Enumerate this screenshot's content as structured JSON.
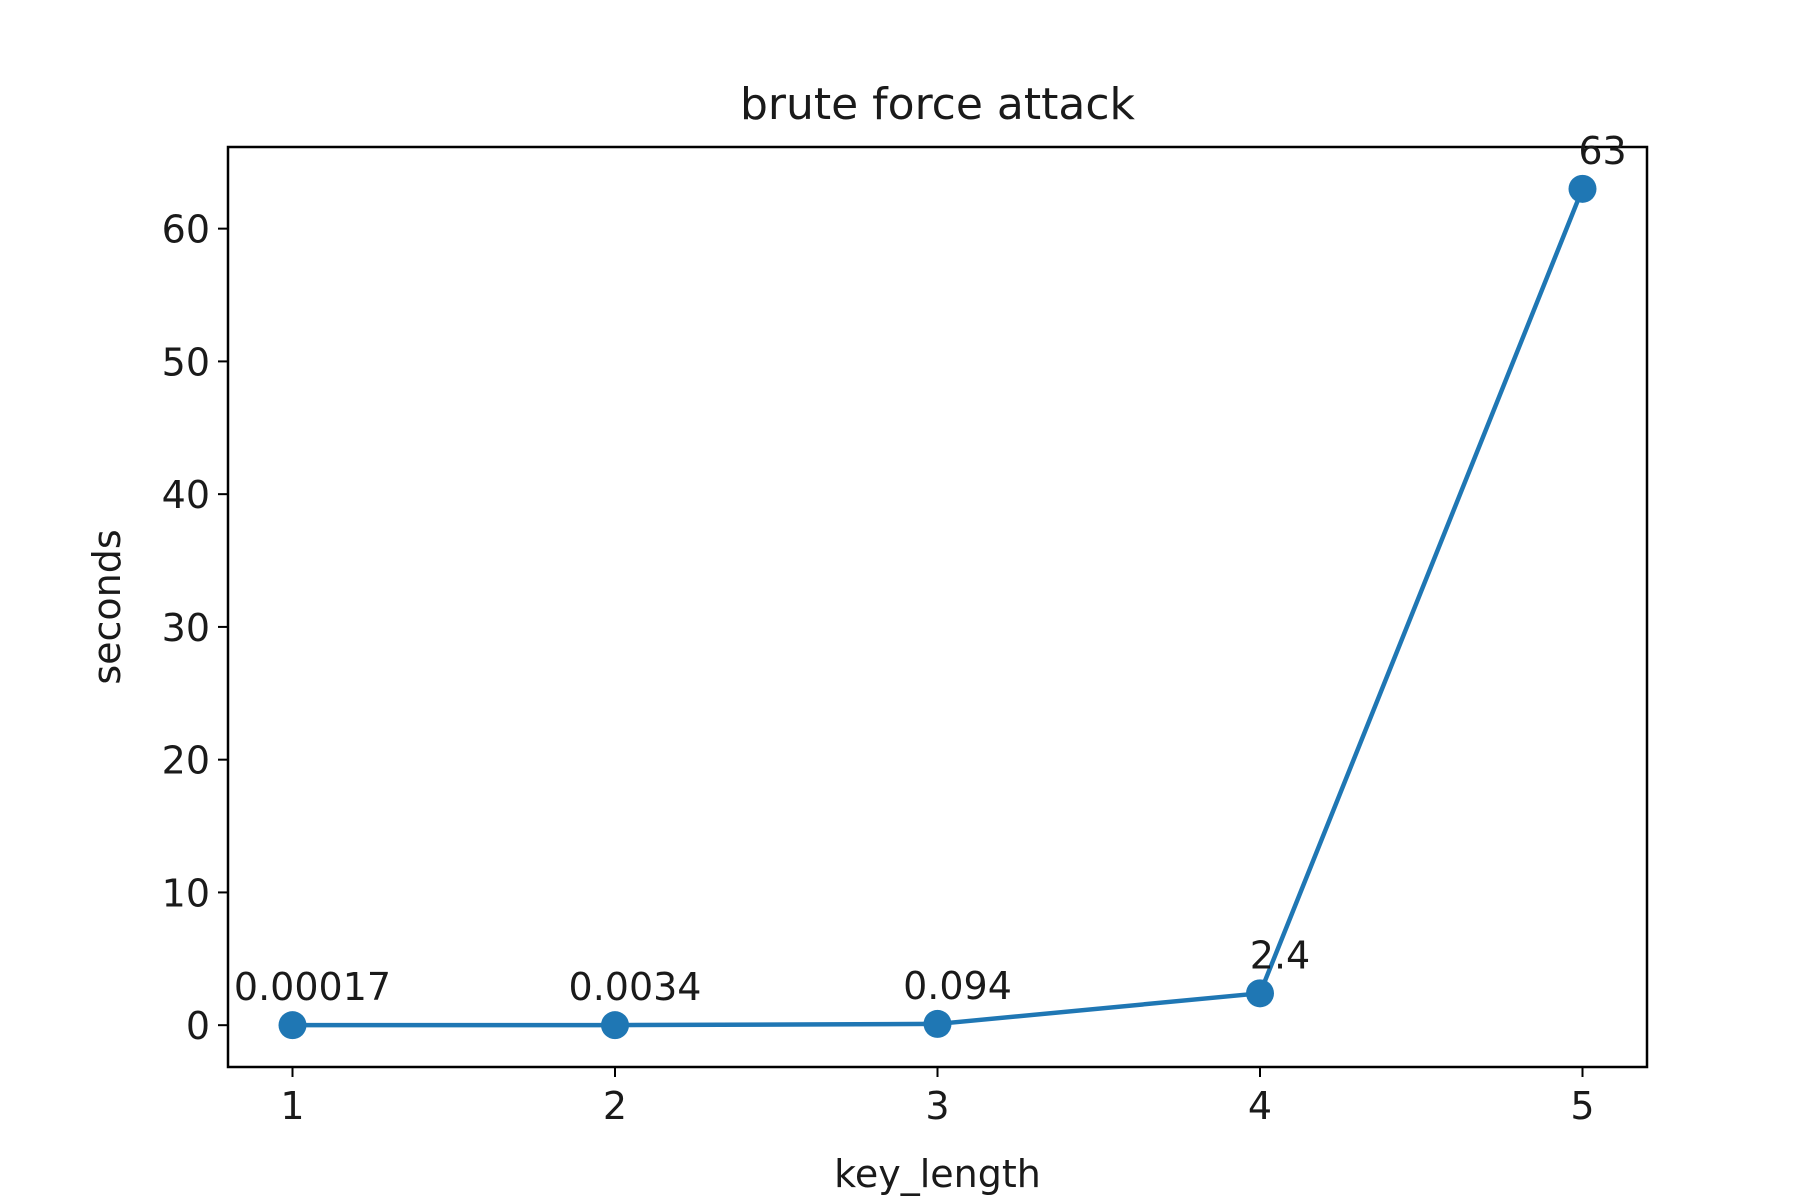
{
  "chart_data": {
    "type": "line",
    "title": "brute force attack",
    "xlabel": "key_length",
    "ylabel": "seconds",
    "x": [
      1,
      2,
      3,
      4,
      5
    ],
    "series": [
      {
        "values": [
          0.00017,
          0.0034,
          0.094,
          2.4,
          63
        ],
        "color": "#1f77b4"
      }
    ],
    "data_labels": [
      "0.00017",
      "0.0034",
      "0.094",
      "2.4",
      "63"
    ],
    "xticks": [
      1,
      2,
      3,
      4,
      5
    ],
    "yticks": [
      0,
      10,
      20,
      30,
      40,
      50,
      60
    ],
    "xlim": [
      0.8,
      5.2
    ],
    "ylim": [
      -3.15,
      66.15
    ],
    "grid": false,
    "marker": "circle"
  }
}
